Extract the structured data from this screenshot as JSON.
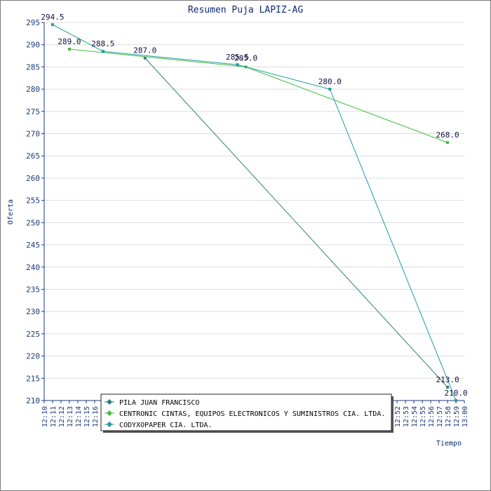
{
  "chart_data": {
    "type": "line",
    "title": "Resumen Puja LAPIZ-AG",
    "xlabel": "Tiempo",
    "ylabel": "Oferta",
    "ylim": [
      210,
      295
    ],
    "ytick_step": 5,
    "grid": true,
    "x_tick_labels": [
      "12:10",
      "12:11",
      "12:12",
      "12:13",
      "12:14",
      "12:15",
      "12:16",
      "12:52",
      "12:53",
      "12:54",
      "12:55",
      "12:56",
      "12:57",
      "12:58",
      "12:59",
      "13:00"
    ],
    "series": [
      {
        "name": "PILA  JUAN FRANCISCO",
        "color": "#2f7f74",
        "points": [
          {
            "x": "12:22",
            "y": 287.0
          },
          {
            "x": "12:58",
            "y": 213.0
          }
        ]
      },
      {
        "name": "CENTRONIC CINTAS, EQUIPOS ELECTRONICOS Y SUMINISTROS CIA. LTDA.",
        "color": "#3cbf3c",
        "points": [
          {
            "x": "12:13",
            "y": 289.0
          },
          {
            "x": "12:34",
            "y": 285.0
          },
          {
            "x": "12:58",
            "y": 268.0
          }
        ]
      },
      {
        "name": "CODYXOPAPER CIA. LTDA.",
        "color": "#1f9aa0",
        "points": [
          {
            "x": "12:11",
            "y": 294.5
          },
          {
            "x": "12:17",
            "y": 288.5
          },
          {
            "x": "12:33",
            "y": 285.5
          },
          {
            "x": "12:44",
            "y": 280.0
          },
          {
            "x": "12:59",
            "y": 210.0
          }
        ]
      }
    ],
    "data_labels": [
      "294.5",
      "289.0",
      "288.5",
      "287.0",
      "285.5",
      "285.0",
      "280.0",
      "268.0",
      "213.0",
      "210.0"
    ],
    "legend_position": "bottom-center"
  }
}
